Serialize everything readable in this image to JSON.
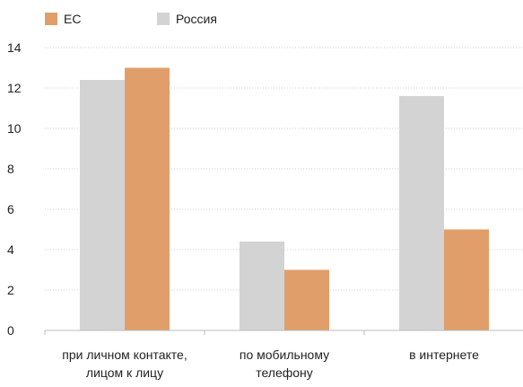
{
  "chart_data": {
    "type": "bar",
    "title": "",
    "xlabel": "",
    "ylabel": "",
    "categories": [
      [
        "при личном контакте,",
        "лицом к лицу"
      ],
      [
        "по мобильному",
        "телефону"
      ],
      [
        "в интернете"
      ]
    ],
    "series": [
      {
        "name": "Россия",
        "color": "#d3d3d3",
        "values": [
          12.4,
          4.4,
          11.6
        ]
      },
      {
        "name": "ЕС",
        "color": "#e09f6a",
        "values": [
          13.0,
          3.0,
          5.0
        ]
      }
    ],
    "legend": {
      "placement": "top-left",
      "order": [
        "ЕС",
        "Россия"
      ]
    },
    "ylim": [
      0,
      14
    ],
    "yticks": [
      0,
      2,
      4,
      6,
      8,
      10,
      12,
      14
    ],
    "grid": {
      "y": true,
      "x": false
    },
    "colors": {
      "grid": "#cfcfcf",
      "axis": "#bbbbbb"
    }
  }
}
